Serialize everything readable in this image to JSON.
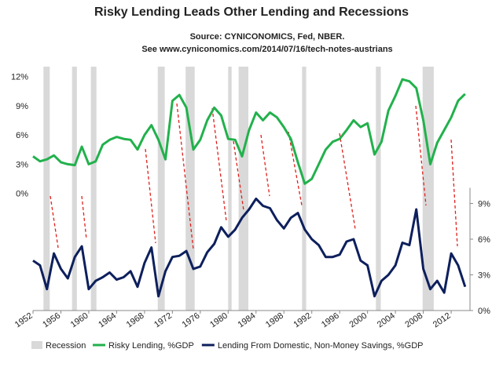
{
  "chart_data": {
    "type": "line",
    "title": "Risky Lending Leads Other Lending and Recessions",
    "subtitle": [
      "Source: CYNICONOMICS, Fed, NBER.",
      "See www.cyniconomics.com/2014/07/16/tech-notes-austrians"
    ],
    "x": [
      1952,
      1953,
      1954,
      1955,
      1956,
      1957,
      1958,
      1959,
      1960,
      1961,
      1962,
      1963,
      1964,
      1965,
      1966,
      1967,
      1968,
      1969,
      1970,
      1971,
      1972,
      1973,
      1974,
      1975,
      1976,
      1977,
      1978,
      1979,
      1980,
      1981,
      1982,
      1983,
      1984,
      1985,
      1986,
      1987,
      1988,
      1989,
      1990,
      1991,
      1992,
      1993,
      1994,
      1995,
      1996,
      1997,
      1998,
      1999,
      2000,
      2001,
      2002,
      2003,
      2004,
      2005,
      2006,
      2007,
      2008,
      2009,
      2010,
      2011,
      2012,
      2013,
      2014
    ],
    "xlim": [
      1952,
      2014.7
    ],
    "xticks": [
      1952,
      1956,
      1960,
      1964,
      1968,
      1972,
      1976,
      1980,
      1984,
      1988,
      1992,
      1996,
      2000,
      2004,
      2008,
      2012
    ],
    "ylim": [
      -12,
      13
    ],
    "yticks": [
      {
        "value": 0,
        "label": "0%"
      },
      {
        "value": 3,
        "label": "3%"
      },
      {
        "value": 6,
        "label": "6%"
      },
      {
        "value": 9,
        "label": "9%"
      },
      {
        "value": 12,
        "label": "12%"
      }
    ],
    "y2lim": [
      0,
      20.5
    ],
    "y2ticks": [
      {
        "value": 0,
        "label": "0%"
      },
      {
        "value": 3,
        "label": "3%"
      },
      {
        "value": 6,
        "label": "6%"
      },
      {
        "value": 9,
        "label": "9%"
      }
    ],
    "recessions": {
      "name": "Recession",
      "color": "#d9d9d9",
      "periods": [
        [
          1953.5,
          1954.4
        ],
        [
          1957.6,
          1958.3
        ],
        [
          1960.3,
          1961.1
        ],
        [
          1969.9,
          1970.9
        ],
        [
          1973.9,
          1975.2
        ],
        [
          1980.0,
          1980.5
        ],
        [
          1981.5,
          1982.9
        ],
        [
          1990.6,
          1991.2
        ],
        [
          2001.2,
          2001.9
        ],
        [
          2007.9,
          2009.5
        ]
      ]
    },
    "series": [
      {
        "name": "Risky Lending, %GDP",
        "color": "#22b14c",
        "values": [
          3.8,
          3.3,
          3.5,
          3.9,
          3.2,
          3.0,
          2.9,
          4.8,
          3.0,
          3.3,
          5.0,
          5.5,
          5.8,
          5.6,
          5.5,
          4.5,
          6.0,
          7.0,
          5.5,
          3.5,
          9.5,
          10.1,
          8.8,
          4.5,
          5.5,
          7.5,
          8.8,
          8.0,
          5.6,
          5.5,
          3.8,
          6.5,
          8.3,
          7.5,
          8.3,
          7.8,
          6.8,
          5.6,
          3.2,
          1.0,
          1.5,
          3.0,
          4.5,
          5.3,
          5.6,
          6.5,
          7.5,
          6.8,
          7.2,
          4.0,
          5.3,
          8.5,
          10.0,
          11.7,
          11.5,
          10.8,
          7.5,
          3.0,
          5.2,
          6.5,
          7.8,
          9.5,
          10.2
        ]
      },
      {
        "name": "Lending From Domestic, Non-Money Savings, %GDP",
        "color": "#0d1f5c",
        "axis": "y2",
        "values": [
          4.2,
          3.8,
          1.8,
          4.8,
          3.5,
          2.7,
          4.5,
          5.4,
          1.8,
          2.5,
          2.8,
          3.2,
          2.6,
          2.8,
          3.3,
          2.0,
          4.0,
          5.3,
          1.2,
          3.3,
          4.5,
          4.6,
          5.0,
          3.5,
          3.7,
          4.9,
          5.6,
          7.0,
          6.2,
          6.8,
          7.8,
          8.5,
          9.4,
          8.8,
          8.6,
          7.6,
          6.9,
          7.8,
          8.2,
          6.8,
          6.0,
          5.5,
          4.5,
          4.5,
          4.7,
          5.8,
          6.0,
          4.2,
          3.8,
          1.2,
          2.5,
          3.0,
          3.8,
          5.7,
          5.5,
          8.5,
          3.5,
          1.8,
          2.5,
          1.5,
          4.8,
          3.8,
          2.0
        ]
      }
    ]
  }
}
